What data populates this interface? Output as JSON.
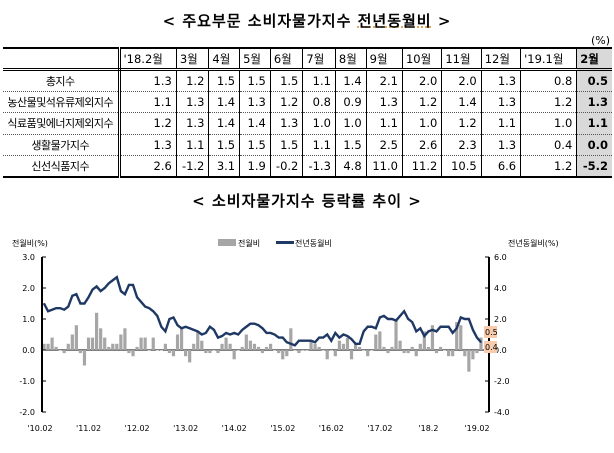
{
  "table_title": {
    "prefix": "< 주요부문 소비자물가지수 ",
    "highlight": "전년동월비",
    "suffix": " >"
  },
  "unit": "(%)",
  "table": {
    "columns": [
      "'18.2월",
      "3월",
      "4월",
      "5월",
      "6월",
      "7월",
      "8월",
      "9월",
      "10월",
      "11월",
      "12월",
      "'19.1월",
      "2월"
    ],
    "rows": [
      {
        "label": "총지수",
        "values": [
          "1.3",
          "1.2",
          "1.5",
          "1.5",
          "1.5",
          "1.1",
          "1.4",
          "2.1",
          "2.0",
          "2.0",
          "1.3",
          "0.8",
          "0.5"
        ]
      },
      {
        "label": "농산물및석유류제외지수",
        "values": [
          "1.1",
          "1.3",
          "1.4",
          "1.3",
          "1.2",
          "0.8",
          "0.9",
          "1.3",
          "1.2",
          "1.4",
          "1.3",
          "1.2",
          "1.3"
        ]
      },
      {
        "label": "식료품및에너지제외지수",
        "values": [
          "1.2",
          "1.3",
          "1.4",
          "1.4",
          "1.3",
          "1.0",
          "1.0",
          "1.1",
          "1.0",
          "1.2",
          "1.1",
          "1.0",
          "1.1"
        ]
      },
      {
        "label": "생활물가지수",
        "values": [
          "1.3",
          "1.1",
          "1.5",
          "1.5",
          "1.5",
          "1.1",
          "1.5",
          "2.5",
          "2.6",
          "2.3",
          "1.3",
          "0.4",
          "0.0"
        ]
      },
      {
        "label": "신선식품지수",
        "values": [
          "2.6",
          "-1.2",
          "3.1",
          "1.9",
          "-0.2",
          "-1.3",
          "4.8",
          "11.0",
          "11.2",
          "10.5",
          "6.6",
          "1.2",
          "-5.2"
        ]
      }
    ]
  },
  "chart_title": "< 소비자물가지수 등락률 추이 >",
  "chart_data": {
    "type": "bar+line",
    "left_axis_label": "전월비(%)",
    "right_axis_label": "전년동월비(%)",
    "left_ylim": [
      -2.0,
      3.0
    ],
    "right_ylim": [
      -4.0,
      6.0
    ],
    "left_ticks": [
      "3.0",
      "2.0",
      "1.0",
      "0.0",
      "-1.0",
      "-2.0"
    ],
    "right_ticks": [
      "6.0",
      "4.0",
      "2.0",
      "0.0",
      "-2.0",
      "-4.0"
    ],
    "x_ticks": [
      "'10.02",
      "'11.02",
      "'12.02",
      "'13.02",
      "'14.02",
      "'15.02",
      "'16.02",
      "'17.02",
      "'18.2",
      "'19.02"
    ],
    "legend": {
      "placement": "top-center",
      "bar": "전월비",
      "line": "전년동월비"
    },
    "colors": {
      "bar": "#a6a6a6",
      "line": "#1f3864",
      "label_box": "#f8cbad"
    },
    "end_labels": {
      "line": "0.5",
      "bar": "0.4"
    },
    "series": [
      {
        "name": "전월비",
        "axis": "left",
        "kind": "bar",
        "values": [
          0.2,
          0.2,
          0.4,
          0.1,
          0.0,
          -0.1,
          0.2,
          0.5,
          0.8,
          -0.1,
          -0.5,
          0.4,
          0.4,
          1.2,
          0.7,
          0.4,
          0.1,
          0.2,
          0.2,
          0.5,
          0.7,
          -0.1,
          -0.2,
          0.1,
          0.4,
          0.4,
          0.0,
          0.4,
          0.0,
          0.0,
          0.2,
          -0.1,
          -0.2,
          0.5,
          0.7,
          -0.2,
          -0.4,
          0.2,
          0.6,
          0.3,
          -0.1,
          -0.1,
          0.0,
          -0.1,
          0.2,
          0.4,
          0.2,
          -0.3,
          0.0,
          0.1,
          0.5,
          0.3,
          0.2,
          0.1,
          -0.1,
          0.1,
          0.2,
          0.0,
          -0.1,
          -0.3,
          -0.2,
          0.7,
          0.0,
          -0.1,
          0.0,
          0.0,
          0.3,
          0.2,
          0.1,
          0.0,
          -0.3,
          0.0,
          -0.2,
          0.3,
          0.2,
          0.4,
          -0.3,
          0.2,
          0.1,
          0.0,
          -0.2,
          0.0,
          0.5,
          0.6,
          0.1,
          -0.1,
          0.1,
          1.0,
          0.3,
          -0.1,
          -0.1,
          0.1,
          -0.2,
          0.2,
          0.6,
          0.1,
          0.8,
          -0.1,
          0.1,
          0.0,
          -0.2,
          -0.2,
          0.9,
          0.8,
          -0.2,
          -0.7,
          -0.3,
          -0.1,
          0.4
        ]
      },
      {
        "name": "전년동월비",
        "axis": "right",
        "kind": "line",
        "values": [
          3.0,
          2.5,
          2.6,
          2.7,
          2.7,
          2.6,
          2.8,
          3.5,
          3.6,
          3.0,
          3.0,
          3.4,
          3.9,
          4.1,
          3.8,
          4.0,
          4.3,
          4.5,
          4.7,
          3.8,
          3.6,
          4.2,
          4.2,
          3.4,
          3.1,
          2.8,
          2.7,
          2.5,
          2.2,
          1.5,
          1.2,
          2.0,
          2.1,
          1.6,
          1.4,
          1.5,
          1.4,
          1.3,
          1.2,
          1.0,
          1.1,
          1.5,
          1.3,
          0.8,
          0.9,
          1.1,
          1.0,
          1.1,
          1.0,
          1.3,
          1.5,
          1.7,
          1.7,
          1.6,
          1.4,
          1.1,
          1.1,
          1.0,
          0.8,
          0.8,
          0.5,
          0.4,
          0.3,
          0.6,
          0.6,
          0.6,
          0.6,
          0.5,
          0.8,
          0.8,
          1.0,
          0.6,
          1.1,
          0.8,
          1.0,
          0.9,
          0.7,
          0.4,
          0.4,
          1.2,
          1.5,
          1.5,
          1.4,
          2.1,
          2.2,
          2.0,
          2.0,
          1.9,
          2.2,
          2.5,
          2.0,
          1.8,
          1.2,
          1.4,
          0.9,
          1.2,
          1.3,
          1.2,
          1.5,
          1.5,
          1.5,
          1.1,
          1.4,
          2.1,
          2.0,
          2.0,
          1.3,
          0.8,
          0.5
        ]
      }
    ]
  }
}
